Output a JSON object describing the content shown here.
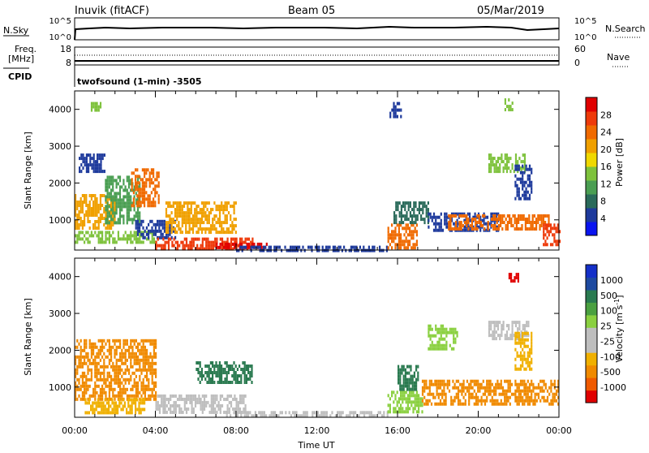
{
  "header": {
    "radar": "Inuvik (fitACF)",
    "beam": "Beam 05",
    "date": "05/Mar/2019"
  },
  "sky_panel": {
    "left_label": "N.Sky",
    "right_label": "N.Search",
    "left_ticks": [
      "10^5",
      "10^0"
    ],
    "right_ticks": [
      "10^5",
      "10^0"
    ]
  },
  "freq_panel": {
    "left_label_1": "Freq.",
    "left_label_2": "[MHz]",
    "left_ticks": [
      "18",
      "8"
    ],
    "right_label": "Nave",
    "right_ticks": [
      "60",
      "0"
    ],
    "cpid_label": "CPID",
    "cpid_text": "twofsound (1-min) -3505"
  },
  "chart_data": [
    {
      "type": "heatmap",
      "name": "power",
      "ylabel": "Slant Range [km]",
      "xlabel": "",
      "x_ticks": [
        "00:00",
        "04:00",
        "08:00",
        "12:00",
        "16:00",
        "20:00",
        "00:00"
      ],
      "xlim_hours": [
        0,
        24
      ],
      "y_ticks": [
        1000,
        2000,
        3000,
        4000
      ],
      "ylim": [
        180,
        4500
      ],
      "colorbar": {
        "label": "Power [dB]",
        "ticks": [
          "28",
          "24",
          "20",
          "16",
          "12",
          "8",
          "4"
        ],
        "colors": [
          "#0a14f0",
          "#1e3a9c",
          "#2a6a5a",
          "#4a9e52",
          "#7ec23c",
          "#f0d800",
          "#f0a000",
          "#f06a00",
          "#ee3a0a",
          "#e00000"
        ]
      },
      "regions": [
        {
          "t0": 0.0,
          "t1": 2.0,
          "r0": 800,
          "r1": 1700,
          "color": "#f0a000"
        },
        {
          "t0": 0.2,
          "t1": 1.5,
          "r0": 2300,
          "r1": 2800,
          "color": "#1e3a9c"
        },
        {
          "t0": 1.5,
          "t1": 3.2,
          "r0": 900,
          "r1": 2200,
          "color": "#4a9e52"
        },
        {
          "t0": 2.8,
          "t1": 4.2,
          "r0": 1400,
          "r1": 2400,
          "color": "#f06a00"
        },
        {
          "t0": 0.0,
          "t1": 4.0,
          "r0": 350,
          "r1": 700,
          "color": "#7ec23c"
        },
        {
          "t0": 3.0,
          "t1": 5.0,
          "r0": 500,
          "r1": 1000,
          "color": "#1e3a9c"
        },
        {
          "t0": 4.5,
          "t1": 8.0,
          "r0": 700,
          "r1": 1500,
          "color": "#f0a000"
        },
        {
          "t0": 4.0,
          "t1": 8.8,
          "r0": 230,
          "r1": 520,
          "color": "#ee3a0a"
        },
        {
          "t0": 7.0,
          "t1": 9.5,
          "r0": 230,
          "r1": 380,
          "color": "#e00000"
        },
        {
          "t0": 8.0,
          "t1": 15.5,
          "r0": 200,
          "r1": 300,
          "color": "#1e3a9c"
        },
        {
          "t0": 15.5,
          "t1": 17.0,
          "r0": 250,
          "r1": 900,
          "color": "#f06a00"
        },
        {
          "t0": 15.8,
          "t1": 17.5,
          "r0": 900,
          "r1": 1500,
          "color": "#2a6a5a"
        },
        {
          "t0": 17.5,
          "t1": 21.0,
          "r0": 700,
          "r1": 1200,
          "color": "#1e3a9c"
        },
        {
          "t0": 18.5,
          "t1": 23.5,
          "r0": 750,
          "r1": 1150,
          "color": "#f06a00"
        },
        {
          "t0": 20.5,
          "t1": 22.3,
          "r0": 2300,
          "r1": 2800,
          "color": "#7ec23c"
        },
        {
          "t0": 21.8,
          "t1": 22.6,
          "r0": 1600,
          "r1": 2500,
          "color": "#1e3a9c"
        },
        {
          "t0": 23.2,
          "t1": 24.0,
          "r0": 300,
          "r1": 900,
          "color": "#ee3a0a"
        },
        {
          "t0": 21.3,
          "t1": 21.7,
          "r0": 4000,
          "r1": 4300,
          "color": "#7ec23c"
        },
        {
          "t0": 0.8,
          "t1": 1.3,
          "r0": 4000,
          "r1": 4200,
          "color": "#7ec23c"
        },
        {
          "t0": 15.6,
          "t1": 16.2,
          "r0": 3800,
          "r1": 4200,
          "color": "#1e3a9c"
        }
      ]
    },
    {
      "type": "heatmap",
      "name": "velocity",
      "ylabel": "Slant Range [km]",
      "xlabel": "Time UT",
      "x_ticks": [
        "00:00",
        "04:00",
        "08:00",
        "12:00",
        "16:00",
        "20:00",
        "00:00"
      ],
      "xlim_hours": [
        0,
        24
      ],
      "y_ticks": [
        1000,
        2000,
        3000,
        4000
      ],
      "ylim": [
        180,
        4500
      ],
      "colorbar": {
        "label": "Velocity [m s^-1]",
        "ticks": [
          "1000",
          "500",
          "100",
          "25",
          "-25",
          "-100",
          "-500",
          "-1000"
        ],
        "colors": [
          "#e00000",
          "#f05a00",
          "#f08a00",
          "#f0b000",
          "#bebebe",
          "#bebebe",
          "#8ad040",
          "#4aa040",
          "#2a7a50",
          "#1e4aa0",
          "#1430c8"
        ]
      },
      "regions": [
        {
          "t0": 0.0,
          "t1": 4.0,
          "r0": 700,
          "r1": 2300,
          "color": "#f08a00"
        },
        {
          "t0": 0.5,
          "t1": 3.5,
          "r0": 300,
          "r1": 700,
          "color": "#f0b000"
        },
        {
          "t0": 4.0,
          "t1": 8.5,
          "r0": 300,
          "r1": 800,
          "color": "#bebebe"
        },
        {
          "t0": 6.0,
          "t1": 8.8,
          "r0": 1100,
          "r1": 1700,
          "color": "#2a7a50"
        },
        {
          "t0": 7.5,
          "t1": 15.5,
          "r0": 200,
          "r1": 350,
          "color": "#bebebe"
        },
        {
          "t0": 15.5,
          "t1": 17.2,
          "r0": 300,
          "r1": 900,
          "color": "#8ad040"
        },
        {
          "t0": 16.0,
          "t1": 17.0,
          "r0": 900,
          "r1": 1600,
          "color": "#2a7a50"
        },
        {
          "t0": 17.2,
          "t1": 24.0,
          "r0": 500,
          "r1": 1200,
          "color": "#f08a00"
        },
        {
          "t0": 20.5,
          "t1": 22.5,
          "r0": 2300,
          "r1": 2800,
          "color": "#bebebe"
        },
        {
          "t0": 21.8,
          "t1": 22.6,
          "r0": 1500,
          "r1": 2500,
          "color": "#f0b000"
        },
        {
          "t0": 17.5,
          "t1": 19.0,
          "r0": 2000,
          "r1": 2700,
          "color": "#8ad040"
        },
        {
          "t0": 21.5,
          "t1": 22.0,
          "r0": 3900,
          "r1": 4100,
          "color": "#e00000"
        }
      ]
    }
  ]
}
